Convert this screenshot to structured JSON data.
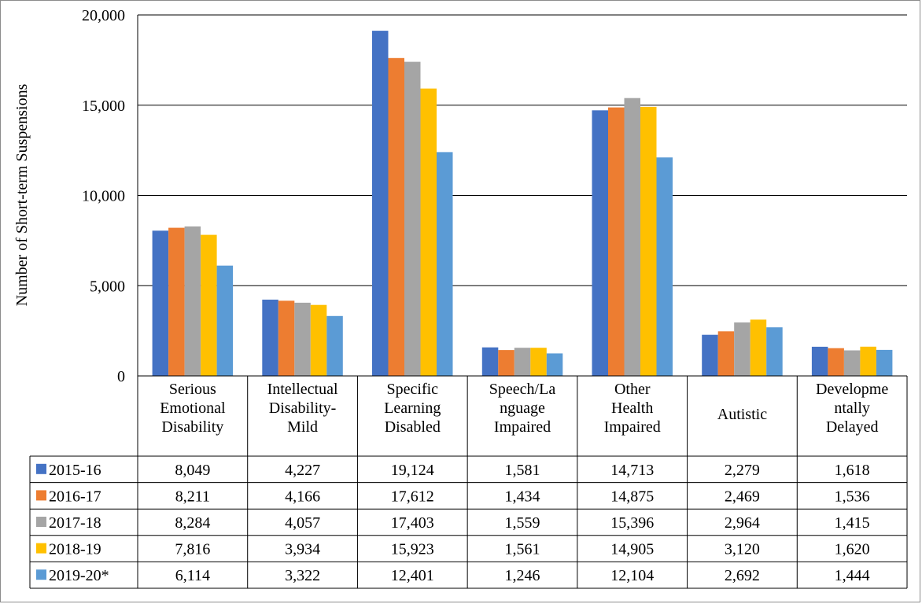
{
  "chart_data": {
    "type": "bar",
    "ylabel": "Number of Short-term Suspensions",
    "ylim": [
      0,
      20000
    ],
    "yticks": [
      0,
      5000,
      10000,
      15000,
      20000
    ],
    "ytick_labels": [
      "0",
      "5,000",
      "10,000",
      "15,000",
      "20,000"
    ],
    "grid": true,
    "legend": "data-table-left",
    "categories": [
      [
        "Serious",
        "Emotional",
        "Disability"
      ],
      [
        "Intellectual",
        "Disability-",
        "Mild"
      ],
      [
        "Specific",
        "Learning",
        "Disabled"
      ],
      [
        "Speech/La",
        "nguage",
        "Impaired"
      ],
      [
        "Other",
        "Health",
        "Impaired"
      ],
      [
        "Autistic"
      ],
      [
        "Developme",
        "ntally",
        "Delayed"
      ]
    ],
    "series": [
      {
        "name": "2015-16",
        "color": "#4472C4",
        "values": [
          8049,
          4227,
          19124,
          1581,
          14713,
          2279,
          1618
        ],
        "labels": [
          "8,049",
          "4,227",
          "19,124",
          "1,581",
          "14,713",
          "2,279",
          "1,618"
        ]
      },
      {
        "name": "2016-17",
        "color": "#ED7D31",
        "values": [
          8211,
          4166,
          17612,
          1434,
          14875,
          2469,
          1536
        ],
        "labels": [
          "8,211",
          "4,166",
          "17,612",
          "1,434",
          "14,875",
          "2,469",
          "1,536"
        ]
      },
      {
        "name": "2017-18",
        "color": "#A5A5A5",
        "values": [
          8284,
          4057,
          17403,
          1559,
          15396,
          2964,
          1415
        ],
        "labels": [
          "8,284",
          "4,057",
          "17,403",
          "1,559",
          "15,396",
          "2,964",
          "1,415"
        ]
      },
      {
        "name": "2018-19",
        "color": "#FFC000",
        "values": [
          7816,
          3934,
          15923,
          1561,
          14905,
          3120,
          1620
        ],
        "labels": [
          "7,816",
          "3,934",
          "15,923",
          "1,561",
          "14,905",
          "3,120",
          "1,620"
        ]
      },
      {
        "name": "2019-20*",
        "color": "#5B9BD5",
        "values": [
          6114,
          3322,
          12401,
          1246,
          12104,
          2692,
          1444
        ],
        "labels": [
          "6,114",
          "3,322",
          "12,401",
          "1,246",
          "12,104",
          "2,692",
          "1,444"
        ]
      }
    ]
  }
}
